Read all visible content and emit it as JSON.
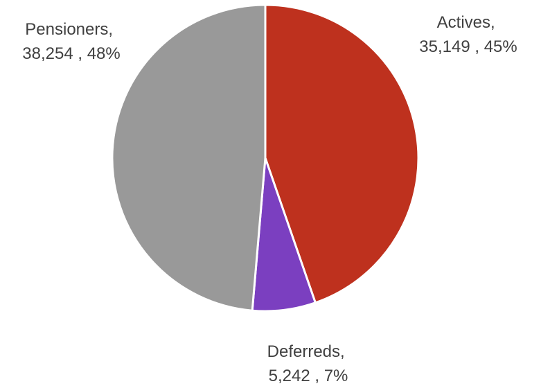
{
  "chart_data": {
    "type": "pie",
    "slices": [
      {
        "name": "Actives",
        "value": 35149,
        "value_label": "35,149",
        "percent": "45%",
        "color": "#BE311E"
      },
      {
        "name": "Deferreds",
        "value": 5242,
        "value_label": "5,242",
        "percent": "7%",
        "color": "#7B3FC0"
      },
      {
        "name": "Pensioners",
        "value": 38254,
        "value_label": "38,254",
        "percent": "48%",
        "color": "#999999"
      }
    ],
    "start_angle": "12 o'clock",
    "direction": "clockwise",
    "slice_border_color": "#FFFFFF",
    "legend": "none",
    "data_labels": "outside: category name and value, percentage"
  }
}
